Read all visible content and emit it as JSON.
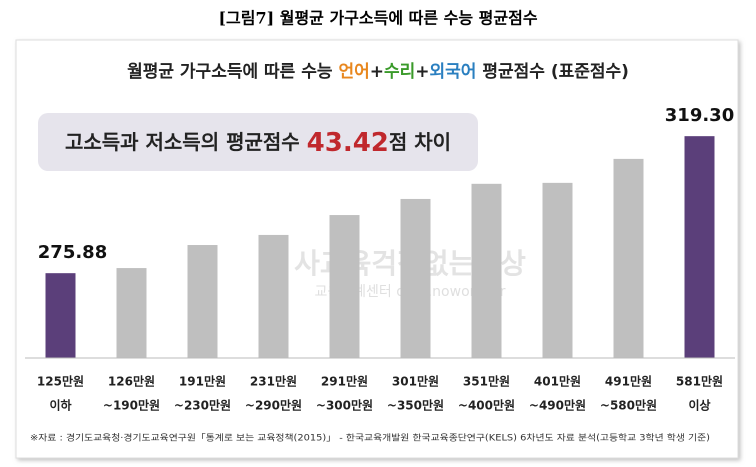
{
  "caption": "[그림7] 월평균 가구소득에 따른 수능 평균점수",
  "chart_data": {
    "type": "bar",
    "title_parts": [
      {
        "text": "월평균 가구소득에 따른 수능 ",
        "color": "#222222"
      },
      {
        "text": "언어",
        "color": "#e8871e"
      },
      {
        "text": "+",
        "color": "#222222"
      },
      {
        "text": "수리",
        "color": "#3a9a2a"
      },
      {
        "text": "+",
        "color": "#222222"
      },
      {
        "text": "외국어",
        "color": "#2a7fc0"
      },
      {
        "text": " 평균점수 (표준점수)",
        "color": "#222222"
      }
    ],
    "annotation_parts": [
      {
        "text": "고소득과 저소득의 평균점수 ",
        "color": "#222222"
      },
      {
        "text": "43.42",
        "color": "#c0282d"
      },
      {
        "text": "점 차이",
        "color": "#222222"
      }
    ],
    "watermark": [
      "사교육걱정없는세상",
      "교육통계센터 data.noworry.kr"
    ],
    "categories": [
      [
        "125만원",
        "이하"
      ],
      [
        "126만원",
        "~190만원"
      ],
      [
        "191만원",
        "~230만원"
      ],
      [
        "231만원",
        "~290만원"
      ],
      [
        "291만원",
        "~300만원"
      ],
      [
        "301만원",
        "~350만원"
      ],
      [
        "351만원",
        "~400만원"
      ],
      [
        "401만원",
        "~490만원"
      ],
      [
        "491만원",
        "~580만원"
      ],
      [
        "581만원",
        "이상"
      ]
    ],
    "values": [
      275.88,
      277.5,
      284.8,
      288.0,
      294.3,
      299.4,
      304.2,
      304.5,
      312.1,
      319.3
    ],
    "value_labels": [
      "275.88",
      null,
      null,
      null,
      null,
      null,
      null,
      null,
      null,
      "319.30"
    ],
    "colors": [
      "#5b3f7a",
      "#bfbfbf",
      "#bfbfbf",
      "#bfbfbf",
      "#bfbfbf",
      "#bfbfbf",
      "#bfbfbf",
      "#bfbfbf",
      "#bfbfbf",
      "#5b3f7a"
    ],
    "ylim": [
      249,
      330
    ],
    "source": "※자료 : 경기도교육청·경기도교육연구원「통계로 보는 교육정책(2015)」 - 한국교육개발원 한국교육종단연구(KELS) 6차년도 자료 분석(고등학교 3학년 학생 기준)"
  }
}
